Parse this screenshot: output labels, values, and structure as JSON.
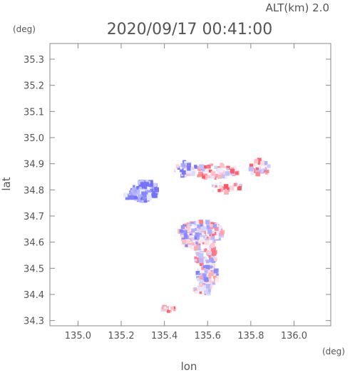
{
  "header": {
    "alt_label": "ALT(km)  2.0",
    "datetime": "2020/09/17 00:41:00"
  },
  "chart_data": {
    "type": "heatmap",
    "title": "2020/09/17 00:41:00",
    "subtitle": "ALT(km)  2.0",
    "xlabel": "lon",
    "ylabel": "lat",
    "x_unit": "(deg)",
    "y_unit": "(deg)",
    "xlim": [
      134.87,
      136.17
    ],
    "ylim": [
      34.28,
      35.36
    ],
    "x_ticks": [
      135.0,
      135.2,
      135.4,
      135.6,
      135.8,
      136.0
    ],
    "x_tick_labels": [
      "135.0",
      "135.2",
      "135.4",
      "135.6",
      "135.8",
      "136.0"
    ],
    "y_ticks": [
      34.3,
      34.4,
      34.5,
      34.6,
      34.7,
      34.8,
      34.9,
      35.0,
      35.1,
      35.2,
      35.3
    ],
    "y_tick_labels": [
      "34.3",
      "34.4",
      "34.5",
      "34.6",
      "34.7",
      "34.8",
      "34.9",
      "35.0",
      "35.1",
      "35.2",
      "35.3"
    ],
    "grid": false,
    "colors": {
      "negative": "#8080ff",
      "positive": "#ff6070",
      "axis": "#888888",
      "text": "#555555"
    },
    "clusters": [
      {
        "lon": 135.31,
        "lat": 34.795,
        "r_lon": 0.06,
        "r_lat": 0.04,
        "n": 120,
        "bias": -0.85
      },
      {
        "lon": 135.27,
        "lat": 34.78,
        "r_lon": 0.05,
        "r_lat": 0.02,
        "n": 40,
        "bias": -0.8
      },
      {
        "lon": 135.5,
        "lat": 34.88,
        "r_lon": 0.05,
        "r_lat": 0.03,
        "n": 40,
        "bias": -0.3
      },
      {
        "lon": 135.64,
        "lat": 34.87,
        "r_lon": 0.1,
        "r_lat": 0.03,
        "n": 70,
        "bias": 0.3
      },
      {
        "lon": 135.84,
        "lat": 34.885,
        "r_lon": 0.05,
        "r_lat": 0.03,
        "n": 40,
        "bias": 0.2
      },
      {
        "lon": 135.68,
        "lat": 34.81,
        "r_lon": 0.08,
        "r_lat": 0.02,
        "n": 30,
        "bias": 0.4
      },
      {
        "lon": 135.58,
        "lat": 34.64,
        "r_lon": 0.1,
        "r_lat": 0.04,
        "n": 160,
        "bias": 0.1
      },
      {
        "lon": 135.53,
        "lat": 34.63,
        "r_lon": 0.06,
        "r_lat": 0.05,
        "n": 80,
        "bias": -0.2
      },
      {
        "lon": 135.59,
        "lat": 34.55,
        "r_lon": 0.05,
        "r_lat": 0.06,
        "n": 110,
        "bias": 0.05
      },
      {
        "lon": 135.6,
        "lat": 34.47,
        "r_lon": 0.05,
        "r_lat": 0.04,
        "n": 80,
        "bias": -0.1
      },
      {
        "lon": 135.58,
        "lat": 34.42,
        "r_lon": 0.04,
        "r_lat": 0.02,
        "n": 30,
        "bias": 0.1
      },
      {
        "lon": 135.42,
        "lat": 34.345,
        "r_lon": 0.03,
        "r_lat": 0.01,
        "n": 14,
        "bias": 0.2
      }
    ]
  }
}
